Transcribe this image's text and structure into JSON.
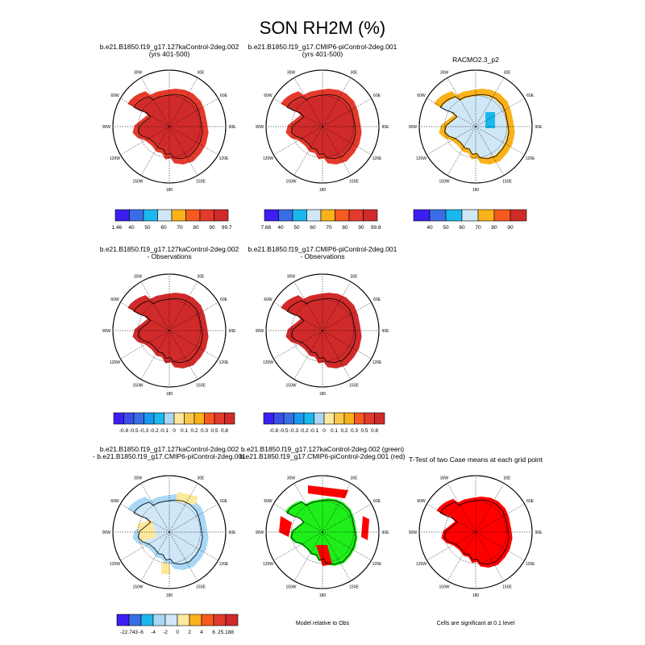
{
  "main_title": "SON RH2M (%)",
  "colors": {
    "blue1": "#3b1ff2",
    "blue2": "#3a6ee6",
    "blue3": "#1ab8ef",
    "lightblue": "#a9d8f5",
    "paleblue": "#cfe7f7",
    "palefill": "#e6f2f8",
    "yellow": "#fde99e",
    "orange": "#f9b21a",
    "redorange": "#f65a1f",
    "red": "#e33a2c",
    "darkred": "#d12a2a",
    "green": "#1eef1a",
    "sigred": "#ff0000"
  },
  "lon_labels": [
    "30W",
    "30E",
    "60W",
    "60E",
    "90W",
    "90E",
    "120W",
    "120E",
    "150W",
    "150E",
    "180"
  ],
  "panels": [
    {
      "title": "b.e21.B1850.f19_g17.127kaControl-2deg.002\n(yrs 401-500)",
      "fill": "model"
    },
    {
      "title": "b.e21.B1850.f19_g17.CMIP6-piControl-2deg.001\n(yrs 401-500)",
      "fill": "model"
    },
    {
      "title": "RACMO2.3_p2",
      "fill": "obs"
    },
    {
      "title": "b.e21.B1850.f19_g17.127kaControl-2deg.002\n- Observations",
      "fill": "diffobs"
    },
    {
      "title": "b.e21.B1850.f19_g17.CMIP6-piControl-2deg.001\n- Observations",
      "fill": "diffobs"
    },
    {
      "title": "b.e21.B1850.f19_g17.127kaControl-2deg.002\n- b.e21.B1850.f19_g17.CMIP6-piControl-2deg.001",
      "fill": "diffcase"
    },
    {
      "title": "b.e21.B1850.f19_g17.127kaControl-2deg.002 (green)\nb.e21.B1850.f19_g17.CMIP6-piControl-2deg.001 (red)",
      "fill": "compare"
    },
    {
      "title": "T-Test of two Case means at each grid point",
      "fill": "ttest"
    }
  ],
  "colorbars": [
    {
      "labels": [
        "21.46",
        "40",
        "50",
        "60",
        "70",
        "80",
        "90",
        "99.79"
      ],
      "colors": [
        "#3b1ff2",
        "#3a6ee6",
        "#1ab8ef",
        "#cfe7f7",
        "#f9b21a",
        "#f65a1f",
        "#e33a2c",
        "#d12a2a"
      ]
    },
    {
      "labels": [
        "17.68",
        "40",
        "50",
        "60",
        "70",
        "80",
        "90",
        "99.83"
      ],
      "colors": [
        "#3b1ff2",
        "#3a6ee6",
        "#1ab8ef",
        "#cfe7f7",
        "#f9b21a",
        "#f65a1f",
        "#e33a2c",
        "#d12a2a"
      ]
    },
    {
      "labels": [
        "40",
        "50",
        "60",
        "70",
        "80",
        "90"
      ],
      "colors": [
        "#3b1ff2",
        "#3a6ee6",
        "#1ab8ef",
        "#cfe7f7",
        "#f9b21a",
        "#f65a1f",
        "#d12a2a"
      ]
    },
    {
      "labels": [
        "-0.8",
        "-0.5",
        "-0.3",
        "-0.2",
        "-0.1",
        "0",
        "0.1",
        "0.2",
        "0.3",
        "0.5",
        "0.8"
      ],
      "colors": [
        "#3b1ff2",
        "#3a4ee8",
        "#3a6ee6",
        "#1a9aef",
        "#1ab8ef",
        "#a9d8f5",
        "#fde99e",
        "#f9c84a",
        "#f9b21a",
        "#f65a1f",
        "#e33a2c",
        "#d12a2a"
      ]
    },
    {
      "labels": [
        "-0.8",
        "-0.5",
        "-0.3",
        "-0.2",
        "-0.1",
        "0",
        "0.1",
        "0.2",
        "0.3",
        "0.5",
        "0.8"
      ],
      "colors": [
        "#3b1ff2",
        "#3a4ee8",
        "#3a6ee6",
        "#1a9aef",
        "#1ab8ef",
        "#a9d8f5",
        "#fde99e",
        "#f9c84a",
        "#f9b21a",
        "#f65a1f",
        "#e33a2c",
        "#d12a2a"
      ]
    },
    {
      "labels": [
        "-22.743",
        "-6",
        "-4",
        "-2",
        "0",
        "2",
        "4",
        "6",
        "25.188"
      ],
      "colors": [
        "#3b1ff2",
        "#3a6ee6",
        "#1ab8ef",
        "#a9d8f5",
        "#cfe7f7",
        "#fde99e",
        "#f9b21a",
        "#f65a1f",
        "#e33a2c",
        "#d12a2a"
      ]
    }
  ],
  "notes": {
    "compare": "Model relative to Obs",
    "ttest": "Cells are significant at 0.1 level"
  },
  "chart_data": [
    {
      "type": "heatmap",
      "title": "b.e21.B1850.f19_g17.127kaControl-2deg.002 (yrs 401-500)",
      "field": "RH2M",
      "season": "SON",
      "units": "%",
      "colorbar_range": [
        21.46,
        99.79
      ],
      "contour_levels": [
        40,
        50,
        60,
        70,
        80,
        90
      ]
    },
    {
      "type": "heatmap",
      "title": "b.e21.B1850.f19_g17.CMIP6-piControl-2deg.001 (yrs 401-500)",
      "field": "RH2M",
      "season": "SON",
      "units": "%",
      "colorbar_range": [
        17.68,
        99.83
      ],
      "contour_levels": [
        40,
        50,
        60,
        70,
        80,
        90
      ]
    },
    {
      "type": "heatmap",
      "title": "RACMO2.3_p2",
      "field": "RH2M",
      "season": "SON",
      "units": "%",
      "contour_levels": [
        40,
        50,
        60,
        70,
        80,
        90
      ]
    },
    {
      "type": "heatmap",
      "title": "b.e21.B1850.f19_g17.127kaControl-2deg.002 - Observations",
      "contour_levels": [
        -0.8,
        -0.5,
        -0.3,
        -0.2,
        -0.1,
        0,
        0.1,
        0.2,
        0.3,
        0.5,
        0.8
      ]
    },
    {
      "type": "heatmap",
      "title": "b.e21.B1850.f19_g17.CMIP6-piControl-2deg.001 - Observations",
      "contour_levels": [
        -0.8,
        -0.5,
        -0.3,
        -0.2,
        -0.1,
        0,
        0.1,
        0.2,
        0.3,
        0.5,
        0.8
      ]
    },
    {
      "type": "heatmap",
      "title": "b.e21.B1850.f19_g17.127kaControl-2deg.002 - b.e21.B1850.f19_g17.CMIP6-piControl-2deg.001",
      "colorbar_range": [
        -22.743,
        25.188
      ],
      "contour_levels": [
        -6,
        -4,
        -2,
        0,
        2,
        4,
        6
      ]
    },
    {
      "type": "heatmap",
      "title": "b.e21.B1850.f19_g17.127kaControl-2deg.002 (green) b.e21.B1850.f19_g17.CMIP6-piControl-2deg.001 (red)",
      "note": "Model relative to Obs"
    },
    {
      "type": "heatmap",
      "title": "T-Test of two Case means at each grid point",
      "note": "Cells are significant at 0.1 level"
    }
  ]
}
